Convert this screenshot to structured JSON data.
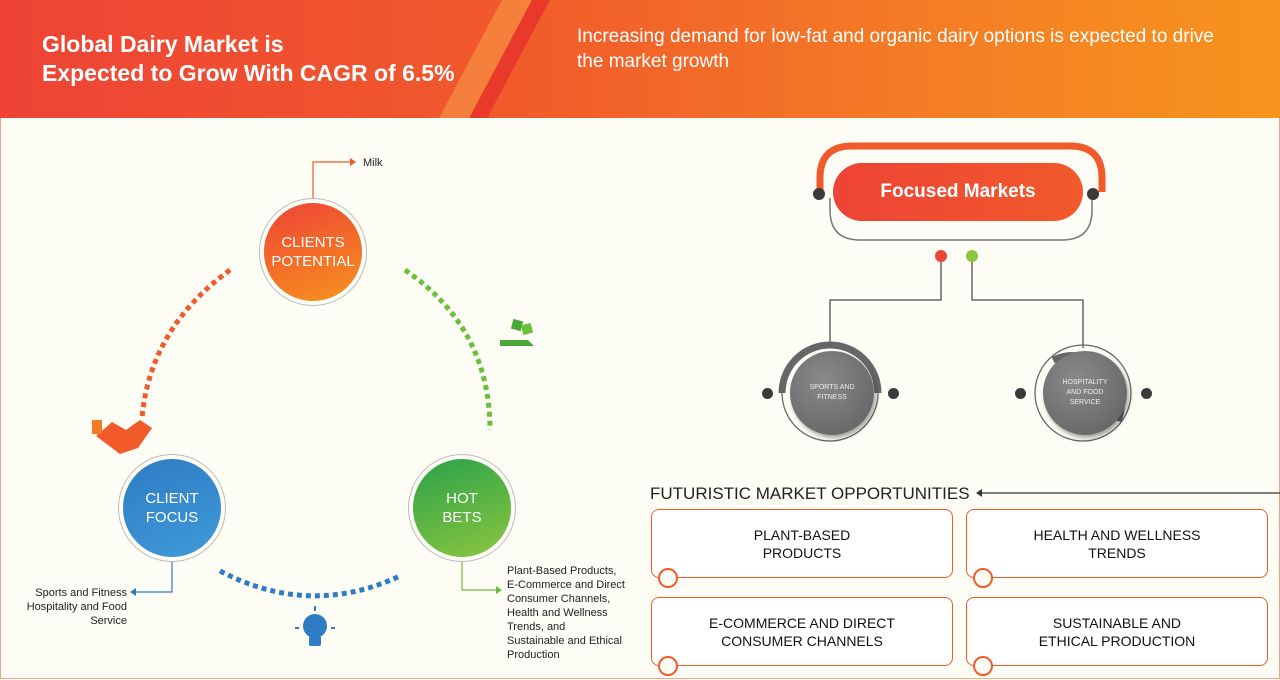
{
  "header": {
    "title_line1": "Global Dairy Market is",
    "title_line2": "Expected to Grow With CAGR of 6.5%",
    "subtitle": "Increasing demand for low-fat and organic dairy options is expected to drive the market growth"
  },
  "cycle": {
    "clients_potential": {
      "line1": "CLIENTS",
      "line2": "POTENTIAL",
      "note": "Milk"
    },
    "client_focus": {
      "line1": "CLIENT",
      "line2": "FOCUS",
      "note_lines": [
        "Sports and Fitness",
        "Hospitality and Food",
        "Service"
      ]
    },
    "hot_bets": {
      "line1": "HOT",
      "line2": "BETS",
      "note_lines": [
        "Plant-Based Products,",
        "E-Commerce and Direct",
        "Consumer Channels,",
        "Health and Wellness",
        "Trends, and",
        "Sustainable and Ethical",
        "Production"
      ]
    },
    "icons": [
      "handshake-icon",
      "dice-hand-icon",
      "lightbulb-icon"
    ]
  },
  "focused": {
    "title": "Focused Markets",
    "markets": [
      {
        "line1": "SPORTS AND",
        "line2": "FITNESS"
      },
      {
        "line1": "HOSPITALITY",
        "line2": "AND FOOD",
        "line3": "SERVICE"
      }
    ]
  },
  "futuristic": {
    "title": "FUTURISTIC MARKET OPPORTUNITIES",
    "items": [
      {
        "line1": "PLANT-BASED",
        "line2": "PRODUCTS"
      },
      {
        "line1": "HEALTH AND WELLNESS",
        "line2": "TRENDS"
      },
      {
        "line1": "E-COMMERCE AND DIRECT",
        "line2": "CONSUMER CHANNELS"
      },
      {
        "line1": "SUSTAINABLE AND",
        "line2": "ETHICAL PRODUCTION"
      }
    ]
  },
  "colors": {
    "orange": "#f15a2b",
    "blue": "#2e7cc4",
    "green": "#6bbf3a",
    "gray": "#666666"
  }
}
